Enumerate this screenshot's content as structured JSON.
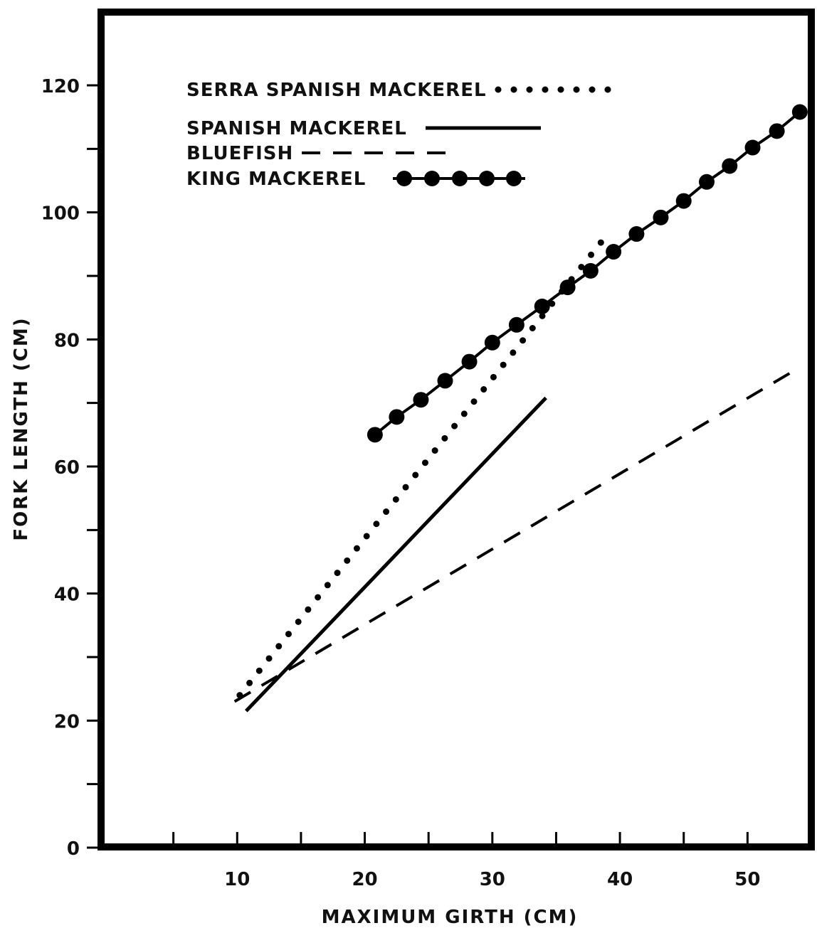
{
  "chart_data": {
    "type": "line",
    "title": "",
    "xlabel": "MAXIMUM GIRTH (CM)",
    "ylabel": "FORK LENGTH (CM)",
    "xlim": [
      0,
      55
    ],
    "ylim": [
      0,
      120
    ],
    "x_tick_labels": [
      "10",
      "20",
      "30",
      "40",
      "50"
    ],
    "x_tick_values": [
      10,
      20,
      30,
      40,
      50
    ],
    "x_minor_ticks": [
      5,
      15,
      25,
      35,
      45
    ],
    "y_tick_labels": [
      "0",
      "20",
      "40",
      "60",
      "80",
      "100",
      "120"
    ],
    "y_tick_values": [
      0,
      20,
      40,
      60,
      80,
      100,
      120
    ],
    "y_minor_ticks": [
      10,
      30,
      50,
      70,
      90,
      110
    ],
    "grid": false,
    "legend_position": "top-left",
    "series": [
      {
        "name": "SERRA SPANISH MACKEREL",
        "style": "dotted",
        "x": [
          10.2,
          39.2
        ],
        "y": [
          24.0,
          97.0
        ]
      },
      {
        "name": "SPANISH MACKEREL",
        "style": "solid",
        "x": [
          10.7,
          34.2
        ],
        "y": [
          21.5,
          70.8
        ]
      },
      {
        "name": "BLUEFISH",
        "style": "dashed",
        "x": [
          9.8,
          54.0
        ],
        "y": [
          23.0,
          75.5
        ]
      },
      {
        "name": "KING MACKEREL",
        "style": "line-with-dots",
        "x": [
          20.8,
          22.5,
          24.4,
          26.3,
          28.2,
          30.0,
          31.9,
          33.9,
          35.9,
          37.7,
          39.5,
          41.3,
          43.2,
          45.0,
          46.8,
          48.6,
          50.4,
          52.3,
          54.1
        ],
        "y": [
          65.0,
          67.8,
          70.5,
          73.5,
          76.5,
          79.5,
          82.3,
          85.2,
          88.2,
          90.8,
          93.8,
          96.6,
          99.2,
          101.8,
          104.8,
          107.3,
          110.2,
          112.8,
          115.8
        ]
      }
    ]
  }
}
